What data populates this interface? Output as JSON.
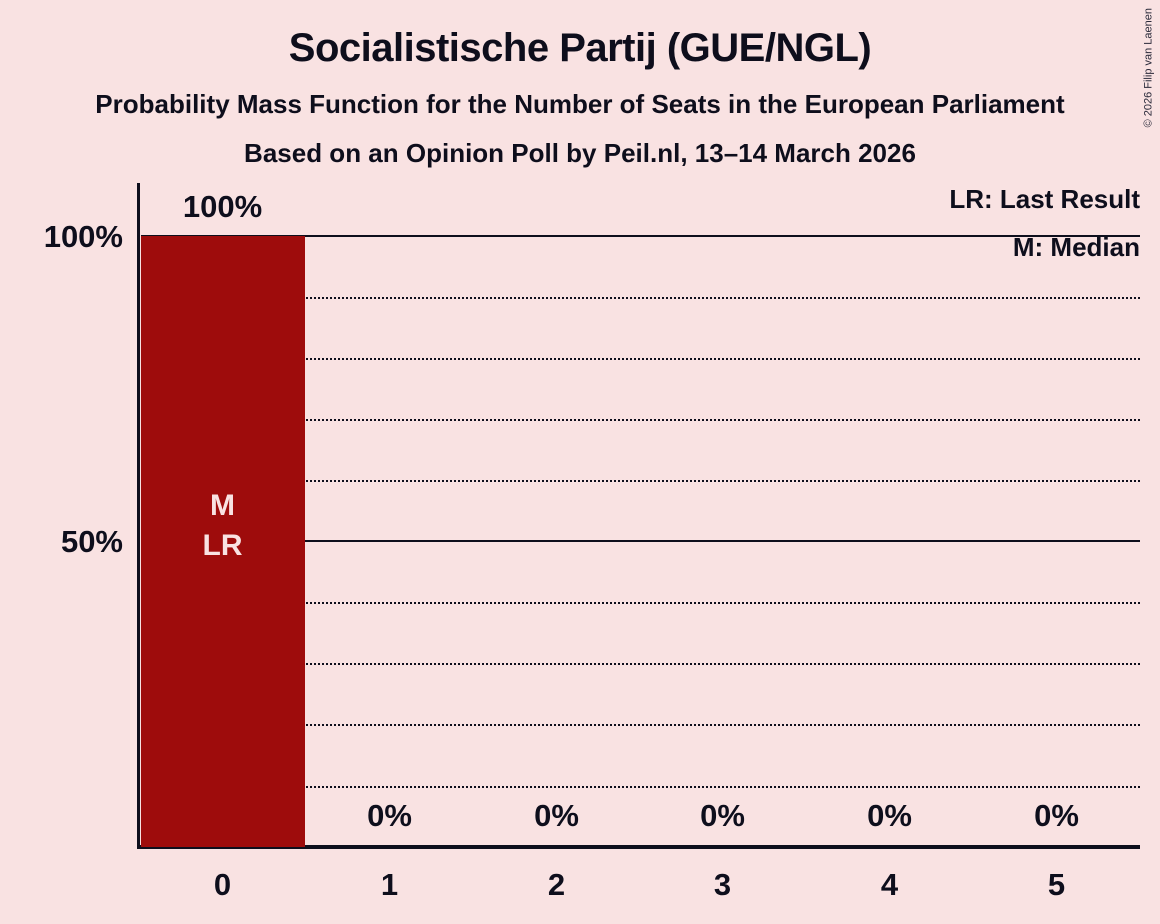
{
  "title": "Socialistische Partij (GUE/NGL)",
  "subtitle": "Probability Mass Function for the Number of Seats in the European Parliament",
  "subsubtitle": "Based on an Opinion Poll by Peil.nl, 13–14 March 2026",
  "copyright": "© 2026 Filip van Laenen",
  "legend": {
    "last_result": "LR: Last Result",
    "median": "M: Median"
  },
  "y_axis": {
    "top_label": "100%",
    "mid_label": "50%"
  },
  "bar_markers": {
    "median": "M",
    "last_result": "LR"
  },
  "colors": {
    "background": "#F9E2E2",
    "bar": "#9E0C0C",
    "text": "#0E0E1C",
    "bar_marker_text": "#F9E2E2"
  },
  "chart_data": {
    "type": "bar",
    "title": "Socialistische Partij (GUE/NGL)",
    "categories": [
      "0",
      "1",
      "2",
      "3",
      "4",
      "5"
    ],
    "values": [
      100,
      0,
      0,
      0,
      0,
      0
    ],
    "value_labels": [
      "100%",
      "0%",
      "0%",
      "0%",
      "0%",
      "0%"
    ],
    "xlabel": "",
    "ylabel": "",
    "ylim": [
      0,
      100
    ],
    "ytick_labels_shown": [
      "100%",
      "50%"
    ],
    "gridlines": {
      "dotted_pct": [
        10,
        20,
        30,
        40,
        60,
        70,
        80,
        90
      ],
      "solid_pct": [
        50,
        100
      ]
    },
    "legend_position": "top-right",
    "median_seat": 0,
    "last_result_seat": 0
  }
}
